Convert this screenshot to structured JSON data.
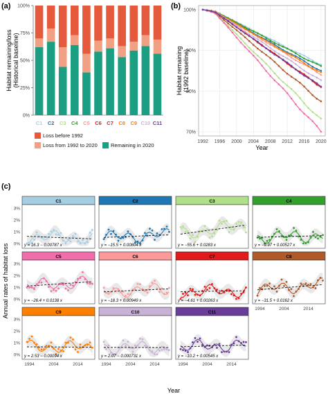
{
  "panels": {
    "a": "(a)",
    "b": "(b)",
    "c": "(c)"
  },
  "chart_data": [
    {
      "panel": "a",
      "type": "bar",
      "stacked": true,
      "ylabel": "Habitat remaining/loss\n(Historical baseline)",
      "ylim": [
        0,
        100
      ],
      "y_ticks": [
        "0%",
        "25%",
        "50%",
        "75%",
        "100%"
      ],
      "categories": [
        "C1",
        "C2",
        "C3",
        "C4",
        "C5",
        "C6",
        "C7",
        "C8",
        "C9",
        "C10",
        "C11"
      ],
      "category_colors": [
        "#a6cee3",
        "#1f78b4",
        "#b2df8a",
        "#33a02c",
        "#fb9a99",
        "#e31a1c",
        "#e31a1c",
        "#ff7f00",
        "#ff7f00",
        "#cab2d6",
        "#6a3d9a"
      ],
      "series": [
        {
          "name": "Remaining in 2020",
          "color": "#1b9e82",
          "values": [
            62,
            67,
            44,
            64,
            39,
            58,
            61,
            53,
            59,
            63,
            56
          ]
        },
        {
          "name": "Loss from 1992 to 2020",
          "color": "#f2a083",
          "values": [
            8,
            12,
            18,
            9,
            17,
            10,
            9,
            10,
            8,
            10,
            13
          ]
        },
        {
          "name": "Loss before 1992",
          "color": "#e55a3c",
          "values": [
            30,
            21,
            38,
            27,
            44,
            32,
            30,
            37,
            33,
            27,
            31
          ]
        }
      ],
      "legend": [
        "Loss before 1992",
        "Loss from 1992 to 2020",
        "Remaining in 2020"
      ],
      "legend_position": "bottom"
    },
    {
      "panel": "b",
      "type": "line",
      "ylabel": "Habitat remaining\n(1992 baseline)",
      "xlabel": "Year",
      "x_ticks": [
        "1992",
        "1996",
        "2000",
        "2004",
        "2008",
        "2012",
        "2016",
        "2020"
      ],
      "y_ticks": [
        "70%",
        "80%",
        "90%",
        "100%"
      ],
      "ylim": [
        69,
        101
      ],
      "xlim": [
        1991,
        2021
      ],
      "grid": true,
      "series": [
        {
          "name": "C1",
          "color": "#a6cee3",
          "end": 86.5
        },
        {
          "name": "C2",
          "color": "#1f78b4",
          "end": 85.0
        },
        {
          "name": "C3",
          "color": "#b2df8a",
          "end": 73.0
        },
        {
          "name": "C4",
          "color": "#33a02c",
          "end": 86.0
        },
        {
          "name": "C5",
          "color": "#f06eaa",
          "end": 70.0
        },
        {
          "name": "C6",
          "color": "#fb9a99",
          "end": 84.0
        },
        {
          "name": "C7",
          "color": "#e31a1c",
          "end": 81.0
        },
        {
          "name": "C8",
          "color": "#b15928",
          "end": 77.5
        },
        {
          "name": "C9",
          "color": "#ff7f00",
          "end": 84.5
        },
        {
          "name": "C10",
          "color": "#cab2d6",
          "end": 82.5
        },
        {
          "name": "C11",
          "color": "#6a3d9a",
          "end": 81.0
        }
      ]
    },
    {
      "panel": "c",
      "type": "scatter",
      "ylabel": "Annual rates of habitat loss",
      "xlabel": "Year",
      "x_ticks": [
        "1994",
        "2004",
        "2014"
      ],
      "y_ticks": [
        "0%",
        "1%",
        "2%",
        "3%"
      ],
      "ylim": [
        -0.4,
        3.3
      ],
      "xlim": [
        1991,
        2021
      ],
      "facets": [
        {
          "name": "C1",
          "strip_color": "#a6cee3",
          "color": "#a6cee3",
          "equation": "y = 16.3 − 0.00787 x",
          "a": 16.3,
          "b": -0.00787
        },
        {
          "name": "C2",
          "strip_color": "#1f78b4",
          "color": "#1f78b4",
          "equation": "y = −15.5 + 0.00804 x",
          "a": -15.5,
          "b": 0.00804
        },
        {
          "name": "C3",
          "strip_color": "#b2df8a",
          "color": "#b2df8a",
          "equation": "y = −55.6 + 0.0283 x",
          "a": -55.6,
          "b": 0.0283
        },
        {
          "name": "C4",
          "strip_color": "#33a02c",
          "color": "#33a02c",
          "equation": "y = −9.97 + 0.00527 x",
          "a": -9.97,
          "b": 0.00527
        },
        {
          "name": "C5",
          "strip_color": "#f06eaa",
          "color": "#f06eaa",
          "equation": "y = −26.4 + 0.0138 x",
          "a": -26.4,
          "b": 0.0138
        },
        {
          "name": "C6",
          "strip_color": "#fb9a99",
          "color": "#fb9a99",
          "equation": "y = −18.3 + 0.00949 x",
          "a": -18.3,
          "b": 0.00949
        },
        {
          "name": "C7",
          "strip_color": "#e31a1c",
          "color": "#e31a1c",
          "equation": "y = −4.61 + 0.00263 x",
          "a": -4.61,
          "b": 0.00263
        },
        {
          "name": "C8",
          "strip_color": "#b15928",
          "color": "#b15928",
          "equation": "y = −31.5 + 0.0162 x",
          "a": -31.5,
          "b": 0.0162
        },
        {
          "name": "C9",
          "strip_color": "#ff7f00",
          "color": "#ff7f00",
          "equation": "y = 2.53 − 0.00094 x",
          "a": 2.53,
          "b": -0.00094
        },
        {
          "name": "C10",
          "strip_color": "#cab2d6",
          "color": "#cab2d6",
          "equation": "y = 2.07 − 0.000731 x",
          "a": 2.07,
          "b": -0.000731
        },
        {
          "name": "C11",
          "strip_color": "#6a3d9a",
          "color": "#6a3d9a",
          "equation": "y = −10.2 + 0.00545 x",
          "a": -10.2,
          "b": 0.00545
        }
      ]
    }
  ]
}
